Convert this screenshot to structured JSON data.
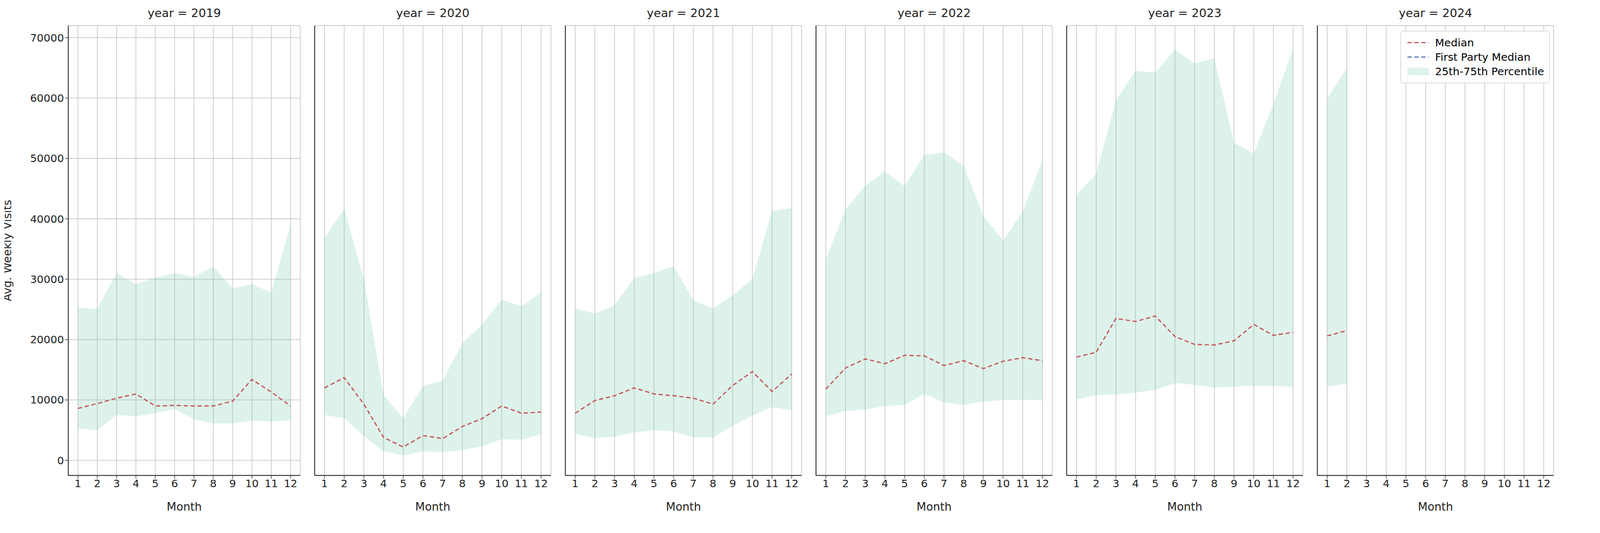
{
  "chart_data": [
    {
      "type": "line",
      "title": "year = 2019",
      "x_label": "Month",
      "y_label": "Avg. Weekly Visits",
      "x": [
        1,
        2,
        3,
        4,
        5,
        6,
        7,
        8,
        9,
        10,
        11,
        12
      ],
      "xlim": [
        0.5,
        12.5
      ],
      "xticks": [
        1,
        2,
        3,
        4,
        5,
        6,
        7,
        8,
        9,
        10,
        11,
        12
      ],
      "ylim": [
        -2500,
        72000
      ],
      "yticks": [
        0,
        10000,
        20000,
        30000,
        40000,
        50000,
        60000,
        70000
      ],
      "grid": true,
      "series": [
        {
          "name": "Median",
          "type": "line",
          "color": "#c44e52",
          "line_style": "dashed",
          "values": [
            8600,
            9400,
            10300,
            11000,
            9000,
            9100,
            9000,
            9000,
            9800,
            13400,
            11300,
            9000
          ]
        },
        {
          "name": "First Party Median",
          "type": "line",
          "color": "#4c72b0",
          "line_style": "dashed",
          "values": [
            null,
            null,
            null,
            null,
            null,
            null,
            null,
            null,
            null,
            null,
            null,
            null
          ]
        },
        {
          "name": "25th-75th Percentile",
          "type": "area",
          "color": "#66c2a5",
          "values": [
            [
              5300,
              25300
            ],
            [
              5000,
              25100
            ],
            [
              7500,
              31000
            ],
            [
              7300,
              29200
            ],
            [
              7800,
              30300
            ],
            [
              8500,
              31000
            ],
            [
              6800,
              30400
            ],
            [
              6100,
              32100
            ],
            [
              6100,
              28500
            ],
            [
              6600,
              29200
            ],
            [
              6400,
              27800
            ],
            [
              6700,
              39000
            ]
          ]
        }
      ]
    },
    {
      "type": "line",
      "title": "year = 2020",
      "x_label": "Month",
      "tick_labels": "x",
      "x": [
        1,
        2,
        3,
        4,
        5,
        6,
        7,
        8,
        9,
        10,
        11,
        12
      ],
      "xlim": [
        0.5,
        12.5
      ],
      "xticks": [
        1,
        2,
        3,
        4,
        5,
        6,
        7,
        8,
        9,
        10,
        11,
        12
      ],
      "ylim": [
        -2500,
        72000
      ],
      "yticks": [
        0,
        10000,
        20000,
        30000,
        40000,
        50000,
        60000,
        70000
      ],
      "grid": true,
      "series": [
        {
          "name": "Median",
          "type": "line",
          "color": "#c44e52",
          "line_style": "dashed",
          "values": [
            12000,
            13700,
            9300,
            3800,
            2200,
            4100,
            3600,
            5600,
            6900,
            9000,
            7800,
            8000
          ]
        },
        {
          "name": "First Party Median",
          "type": "line",
          "color": "#4c72b0",
          "line_style": "dashed",
          "values": [
            null,
            null,
            null,
            null,
            null,
            null,
            null,
            null,
            null,
            null,
            null,
            null
          ]
        },
        {
          "name": "25th-75th Percentile",
          "type": "area",
          "color": "#66c2a5",
          "values": [
            [
              7500,
              36800
            ],
            [
              7000,
              41700
            ],
            [
              4000,
              30000
            ],
            [
              1500,
              10800
            ],
            [
              800,
              7000
            ],
            [
              1500,
              12300
            ],
            [
              1300,
              13200
            ],
            [
              1700,
              19400
            ],
            [
              2300,
              22500
            ],
            [
              3500,
              26600
            ],
            [
              3400,
              25500
            ],
            [
              4300,
              27800
            ]
          ]
        }
      ]
    },
    {
      "type": "line",
      "title": "year = 2021",
      "x_label": "Month",
      "tick_labels": "x",
      "x": [
        1,
        2,
        3,
        4,
        5,
        6,
        7,
        8,
        9,
        10,
        11,
        12
      ],
      "xlim": [
        0.5,
        12.5
      ],
      "xticks": [
        1,
        2,
        3,
        4,
        5,
        6,
        7,
        8,
        9,
        10,
        11,
        12
      ],
      "ylim": [
        -2500,
        72000
      ],
      "yticks": [
        0,
        10000,
        20000,
        30000,
        40000,
        50000,
        60000,
        70000
      ],
      "grid": true,
      "series": [
        {
          "name": "Median",
          "type": "line",
          "color": "#c44e52",
          "line_style": "dashed",
          "values": [
            7800,
            9900,
            10700,
            12000,
            11000,
            10700,
            10300,
            9300,
            12400,
            14700,
            11400,
            14300
          ]
        },
        {
          "name": "First Party Median",
          "type": "line",
          "color": "#4c72b0",
          "line_style": "dashed",
          "values": [
            null,
            null,
            null,
            null,
            null,
            null,
            null,
            null,
            null,
            null,
            null,
            null
          ]
        },
        {
          "name": "25th-75th Percentile",
          "type": "area",
          "color": "#66c2a5",
          "values": [
            [
              4400,
              25200
            ],
            [
              3700,
              24300
            ],
            [
              3900,
              25700
            ],
            [
              4600,
              30200
            ],
            [
              5000,
              31000
            ],
            [
              4800,
              32200
            ],
            [
              3800,
              26500
            ],
            [
              3800,
              25200
            ],
            [
              5700,
              27300
            ],
            [
              7400,
              30000
            ],
            [
              8800,
              41300
            ],
            [
              8300,
              41800
            ]
          ]
        }
      ]
    },
    {
      "type": "line",
      "title": "year = 2022",
      "x_label": "Month",
      "tick_labels": "x",
      "x": [
        1,
        2,
        3,
        4,
        5,
        6,
        7,
        8,
        9,
        10,
        11,
        12
      ],
      "xlim": [
        0.5,
        12.5
      ],
      "xticks": [
        1,
        2,
        3,
        4,
        5,
        6,
        7,
        8,
        9,
        10,
        11,
        12
      ],
      "ylim": [
        -2500,
        72000
      ],
      "yticks": [
        0,
        10000,
        20000,
        30000,
        40000,
        50000,
        60000,
        70000
      ],
      "grid": true,
      "series": [
        {
          "name": "Median",
          "type": "line",
          "color": "#c44e52",
          "line_style": "dashed",
          "values": [
            11800,
            15300,
            16800,
            16000,
            17400,
            17300,
            15700,
            16500,
            15200,
            16400,
            17000,
            16500
          ]
        },
        {
          "name": "First Party Median",
          "type": "line",
          "color": "#4c72b0",
          "line_style": "dashed",
          "values": [
            null,
            null,
            null,
            null,
            null,
            null,
            null,
            null,
            null,
            null,
            null,
            null
          ]
        },
        {
          "name": "25th-75th Percentile",
          "type": "area",
          "color": "#66c2a5",
          "values": [
            [
              7300,
              33300
            ],
            [
              8200,
              41600
            ],
            [
              8400,
              45500
            ],
            [
              9000,
              47800
            ],
            [
              9200,
              45400
            ],
            [
              11000,
              50600
            ],
            [
              9600,
              51000
            ],
            [
              9200,
              48800
            ],
            [
              9700,
              40500
            ],
            [
              10000,
              36400
            ],
            [
              10000,
              41200
            ],
            [
              10000,
              49800
            ]
          ]
        }
      ]
    },
    {
      "type": "line",
      "title": "year = 2023",
      "x_label": "Month",
      "tick_labels": "x",
      "x": [
        1,
        2,
        3,
        4,
        5,
        6,
        7,
        8,
        9,
        10,
        11,
        12
      ],
      "xlim": [
        0.5,
        12.5
      ],
      "xticks": [
        1,
        2,
        3,
        4,
        5,
        6,
        7,
        8,
        9,
        10,
        11,
        12
      ],
      "ylim": [
        -2500,
        72000
      ],
      "yticks": [
        0,
        10000,
        20000,
        30000,
        40000,
        50000,
        60000,
        70000
      ],
      "grid": true,
      "series": [
        {
          "name": "Median",
          "type": "line",
          "color": "#c44e52",
          "line_style": "dashed",
          "values": [
            17100,
            17900,
            23500,
            23000,
            23900,
            20500,
            19200,
            19100,
            19800,
            22500,
            20700,
            21200
          ]
        },
        {
          "name": "First Party Median",
          "type": "line",
          "color": "#4c72b0",
          "line_style": "dashed",
          "values": [
            null,
            null,
            null,
            null,
            null,
            null,
            null,
            null,
            null,
            null,
            null,
            null
          ]
        },
        {
          "name": "25th-75th Percentile",
          "type": "area",
          "color": "#66c2a5",
          "values": [
            [
              10100,
              44000
            ],
            [
              10800,
              47500
            ],
            [
              10900,
              59600
            ],
            [
              11200,
              64500
            ],
            [
              11700,
              64200
            ],
            [
              12800,
              68000
            ],
            [
              12500,
              65700
            ],
            [
              12000,
              66600
            ],
            [
              12200,
              52600
            ],
            [
              12300,
              50800
            ],
            [
              12300,
              59000
            ],
            [
              12200,
              68200
            ]
          ]
        }
      ]
    },
    {
      "type": "line",
      "title": "year = 2024",
      "x_label": "Month",
      "tick_labels": "x",
      "legend": "upper right",
      "x": [
        1,
        2,
        3,
        4,
        5,
        6,
        7,
        8,
        9,
        10,
        11,
        12
      ],
      "xlim": [
        0.5,
        12.5
      ],
      "xticks": [
        1,
        2,
        3,
        4,
        5,
        6,
        7,
        8,
        9,
        10,
        11,
        12
      ],
      "ylim": [
        -2500,
        72000
      ],
      "yticks": [
        0,
        10000,
        20000,
        30000,
        40000,
        50000,
        60000,
        70000
      ],
      "grid": true,
      "series": [
        {
          "name": "Median",
          "type": "line",
          "color": "#c44e52",
          "line_style": "dashed",
          "values": [
            20600,
            21500,
            null,
            null,
            null,
            null,
            null,
            null,
            null,
            null,
            null,
            null
          ]
        },
        {
          "name": "First Party Median",
          "type": "line",
          "color": "#4c72b0",
          "line_style": "dashed",
          "values": [
            null,
            null,
            null,
            null,
            null,
            null,
            null,
            null,
            null,
            null,
            null,
            null
          ]
        },
        {
          "name": "25th-75th Percentile",
          "type": "area",
          "color": "#66c2a5",
          "values": [
            [
              12200,
              59900
            ],
            [
              12700,
              65000
            ],
            null,
            null,
            null,
            null,
            null,
            null,
            null,
            null,
            null,
            null
          ]
        }
      ]
    }
  ]
}
